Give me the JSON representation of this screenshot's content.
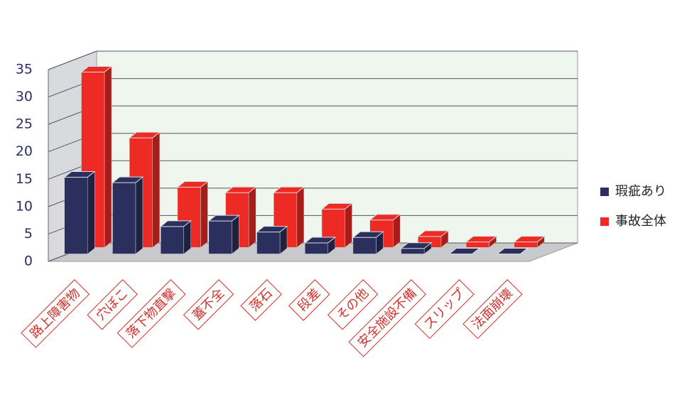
{
  "chart_data": {
    "type": "bar3d",
    "categories": [
      "路上障害物",
      "穴ぼこ",
      "落下物直撃",
      "蓋不全",
      "落石",
      "段差",
      "その他",
      "安全施設不備",
      "スリップ",
      "法面崩壊"
    ],
    "series": [
      {
        "name": "瑕疵あり",
        "color": "#2b2f5e",
        "values": [
          14,
          13,
          5,
          6,
          4,
          2,
          3,
          1,
          0,
          0
        ]
      },
      {
        "name": "事故全体",
        "color": "#ee2a24",
        "values": [
          32,
          20,
          11,
          10,
          10,
          7,
          5,
          2,
          1,
          1
        ]
      }
    ],
    "ylim": [
      0,
      35
    ],
    "yticks": [
      0,
      5,
      10,
      15,
      20,
      25,
      30,
      35
    ],
    "grid": true,
    "legend": "right"
  }
}
